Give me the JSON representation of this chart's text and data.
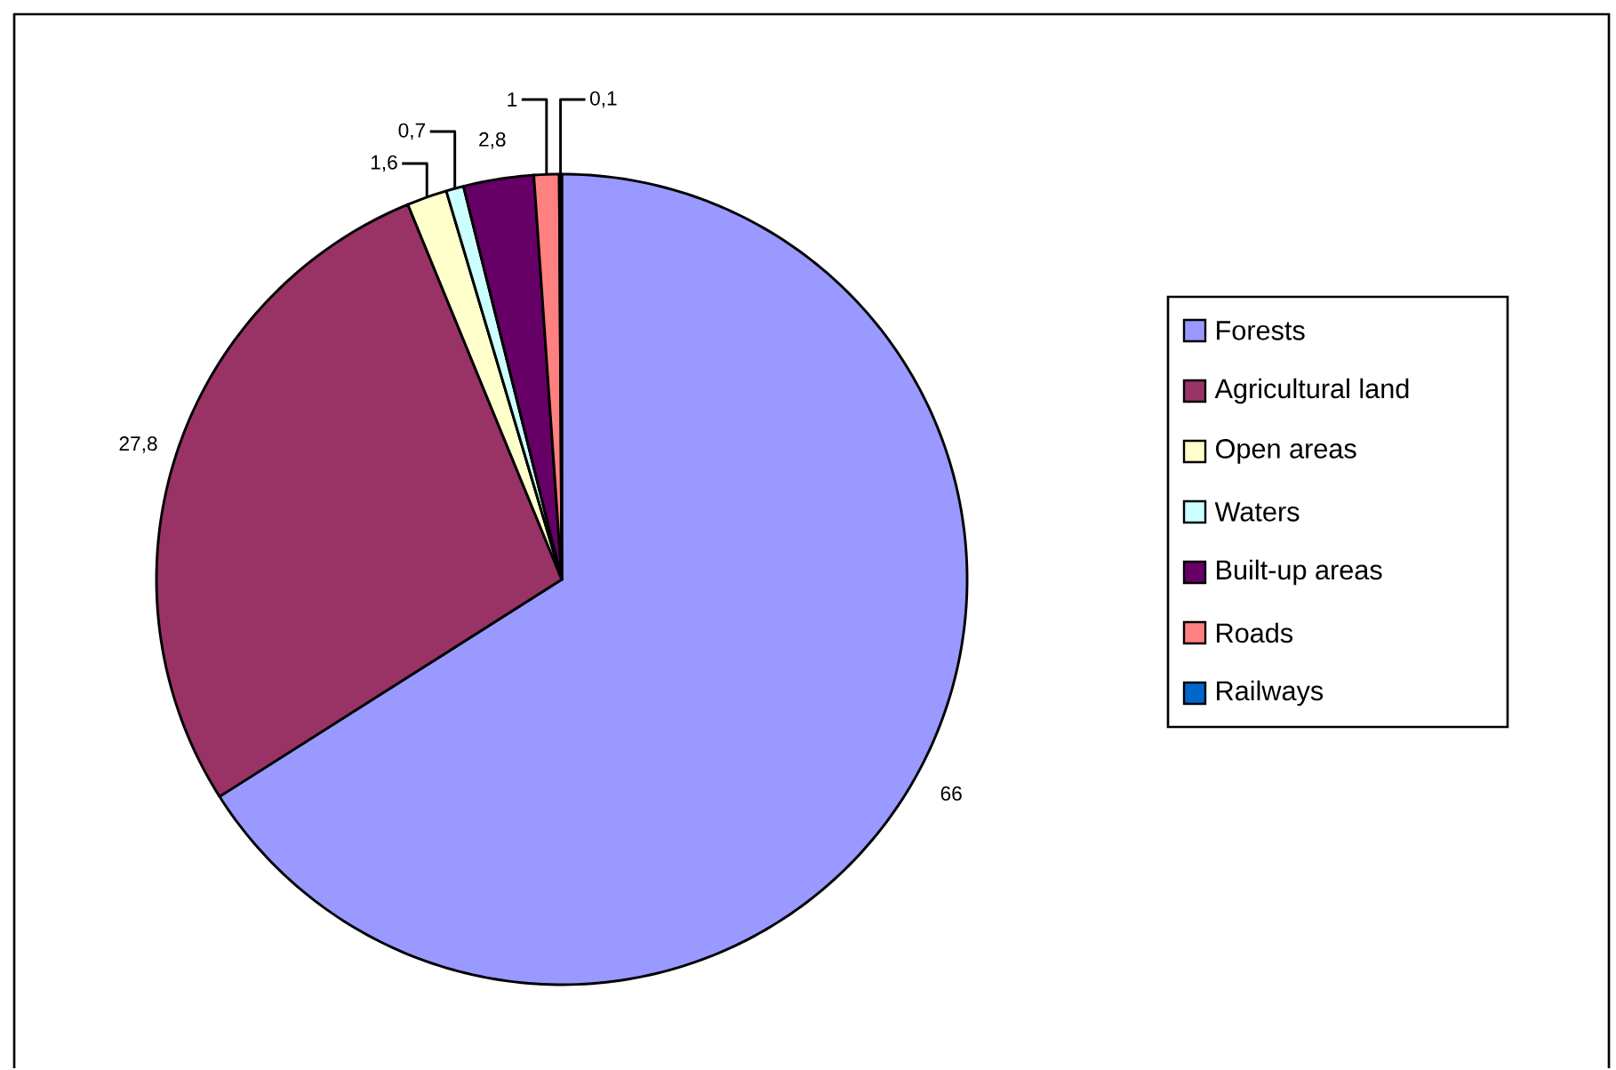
{
  "chart_data": {
    "type": "pie",
    "categories": [
      "Forests",
      "Agricultural land",
      "Open areas",
      "Waters",
      "Built-up areas",
      "Roads",
      "Railways"
    ],
    "values": [
      66,
      27.8,
      1.6,
      0.7,
      2.8,
      1,
      0.1
    ],
    "value_labels": [
      "66",
      "27,8",
      "1,6",
      "0,7",
      "2,8",
      "1",
      "0,1"
    ],
    "colors": [
      "#9999ff",
      "#993366",
      "#ffffcc",
      "#ccffff",
      "#660066",
      "#ff8080",
      "#0066cc"
    ],
    "legend": "right"
  }
}
